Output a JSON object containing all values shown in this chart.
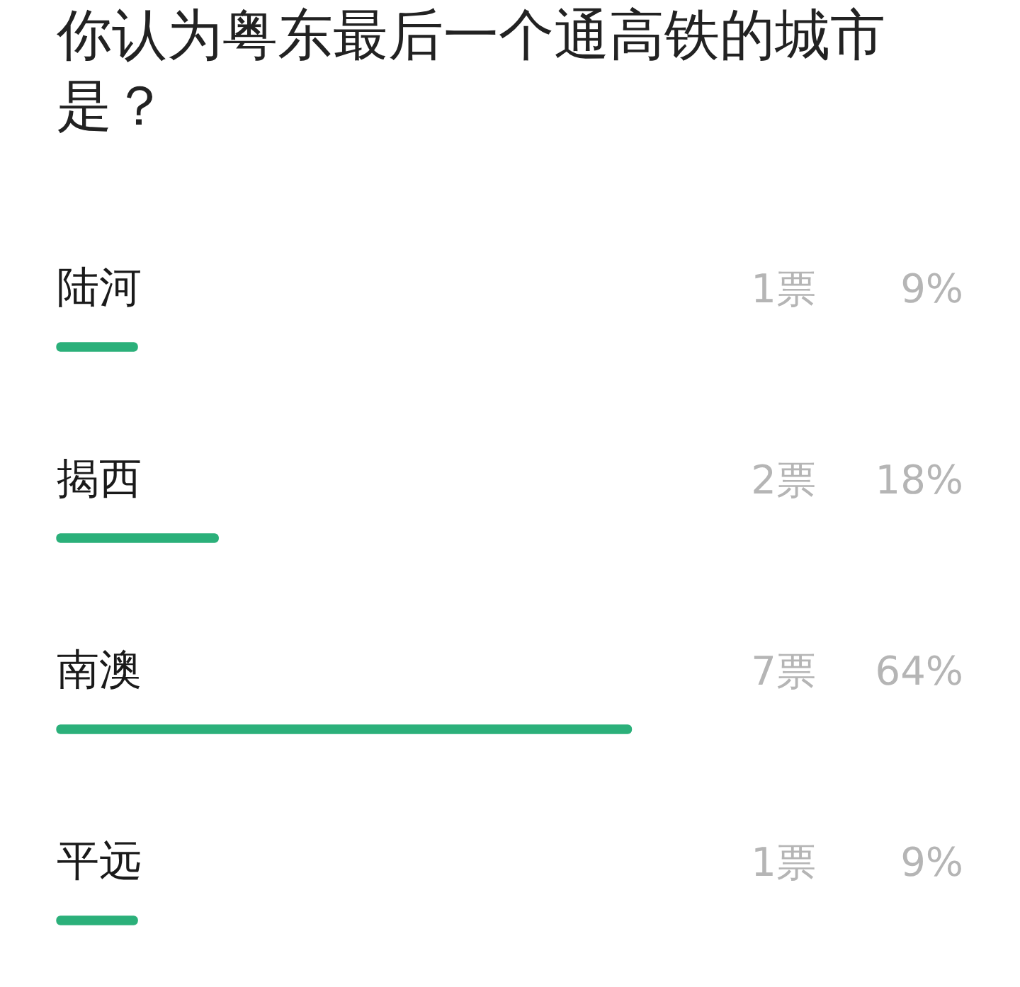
{
  "chart_data": {
    "type": "bar",
    "orientation": "horizontal",
    "title": "你认为粤东最后一个通高铁的城市是？",
    "categories": [
      "陆河",
      "揭西",
      "南澳",
      "平远"
    ],
    "values": [
      9,
      18,
      64,
      9
    ],
    "color": "#2bb07a",
    "value_labels": [
      "9%",
      "18%",
      "64%",
      "9%"
    ],
    "annotations": [
      "1票",
      "2票",
      "7票",
      "1票"
    ],
    "tick_labels": "y"
  }
}
